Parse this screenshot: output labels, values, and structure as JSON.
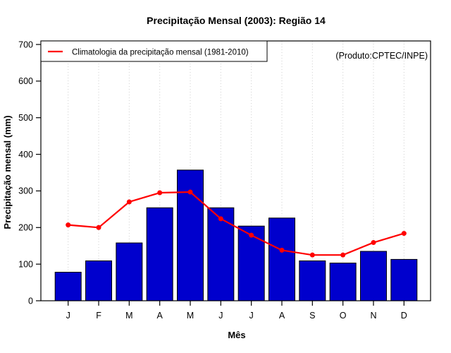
{
  "chart_data": {
    "type": "bar",
    "title": "Precipitação Mensal (2003): Região 14",
    "xlabel": "Mês",
    "ylabel": "Precipitação mensal (mm)",
    "categories": [
      "J",
      "F",
      "M",
      "A",
      "M",
      "J",
      "J",
      "A",
      "S",
      "O",
      "N",
      "D"
    ],
    "ylim": [
      0,
      700
    ],
    "yticks": [
      0,
      100,
      200,
      300,
      400,
      500,
      600,
      700
    ],
    "grid": "vertical-dotted",
    "series": [
      {
        "type": "bar",
        "color": "#0000CD",
        "values": [
          78,
          109,
          158,
          254,
          357,
          254,
          204,
          226,
          109,
          103,
          135,
          113
        ]
      },
      {
        "name": "Climatologia da precipitação mensal (1981-2010)",
        "type": "line",
        "color": "#FF0000",
        "values": [
          207,
          200,
          270,
          295,
          297,
          224,
          179,
          138,
          125,
          125,
          159,
          184
        ]
      }
    ],
    "legend": {
      "position": "topleft",
      "entries": [
        {
          "label": "Climatologia da precipitação mensal (1981-2010)",
          "color": "#FF0000"
        }
      ]
    },
    "annotation": {
      "text": "(Produto:CPTEC/INPE)",
      "color": "#828282",
      "position": "topright"
    }
  }
}
